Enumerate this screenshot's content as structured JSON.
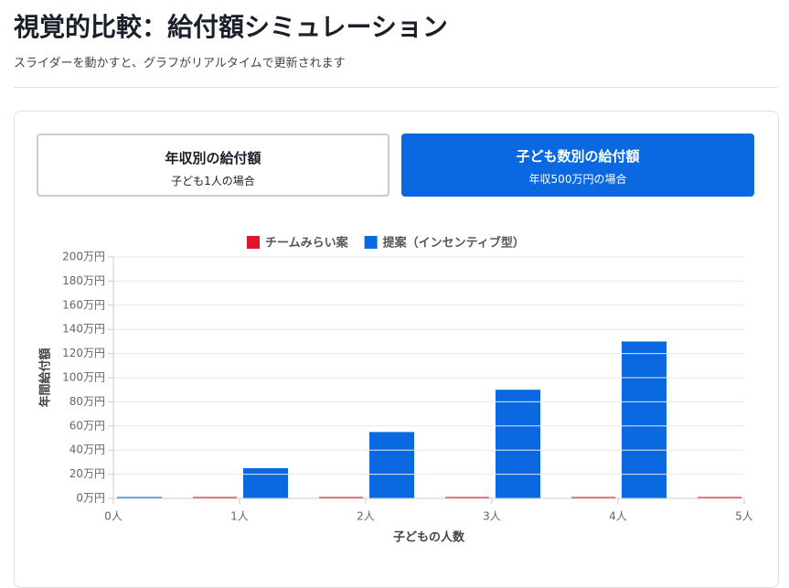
{
  "header": {
    "title": "視覚的比較：給付額シミュレーション",
    "subtitle": "スライダーを動かすと、グラフがリアルタイムで更新されます"
  },
  "tabs": [
    {
      "title": "年収別の給付額",
      "subtitle": "子ども1人の場合"
    },
    {
      "title": "子ども数別の給付額",
      "subtitle": "年収500万円の場合"
    }
  ],
  "chart_data": {
    "type": "bar",
    "x_label": "子どもの人数",
    "y_label": "年間給付額",
    "x": [
      0,
      1,
      2,
      3,
      4,
      5
    ],
    "xlim": [
      0,
      5
    ],
    "xticks": [
      {
        "value": 0,
        "label": "0人"
      },
      {
        "value": 1,
        "label": "1人"
      },
      {
        "value": 2,
        "label": "2人"
      },
      {
        "value": 3,
        "label": "3人"
      },
      {
        "value": 4,
        "label": "4人"
      },
      {
        "value": 5,
        "label": "5人"
      }
    ],
    "ylim": [
      0,
      200
    ],
    "yticks": [
      {
        "value": 0,
        "label": "0万円"
      },
      {
        "value": 20,
        "label": "20万円"
      },
      {
        "value": 40,
        "label": "40万円"
      },
      {
        "value": 60,
        "label": "60万円"
      },
      {
        "value": 80,
        "label": "80万円"
      },
      {
        "value": 100,
        "label": "100万円"
      },
      {
        "value": 120,
        "label": "120万円"
      },
      {
        "value": 140,
        "label": "140万円"
      },
      {
        "value": 160,
        "label": "160万円"
      },
      {
        "value": 180,
        "label": "180万円"
      },
      {
        "value": 200,
        "label": "200万円"
      }
    ],
    "grid": true,
    "legend": "top",
    "series": [
      {
        "name": "チームみらい案",
        "color": "#e0142b",
        "values": [
          0,
          0,
          0,
          0,
          0,
          0
        ]
      },
      {
        "name": "提案（インセンティブ型）",
        "color": "#0a69e0",
        "values": [
          0,
          25,
          55,
          90,
          130,
          null
        ]
      }
    ]
  }
}
